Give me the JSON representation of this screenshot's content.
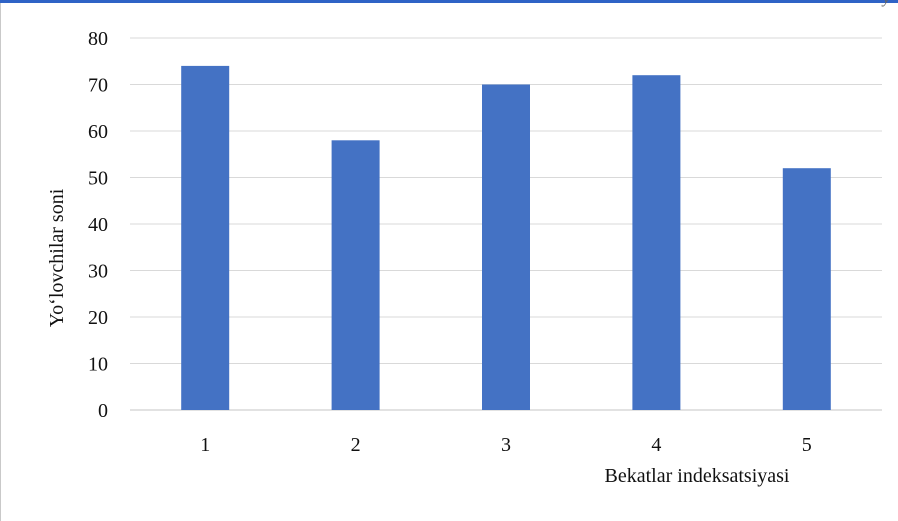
{
  "chart_data": {
    "type": "bar",
    "categories": [
      "1",
      "2",
      "3",
      "4",
      "5"
    ],
    "values": [
      74,
      58,
      70,
      72,
      52
    ],
    "xlabel": "Bekatlar indeksatsiyasi",
    "ylabel": "Yo‘lovchilar soni",
    "ylim": [
      0,
      80
    ],
    "yticks": [
      "0",
      "10",
      "20",
      "30",
      "40",
      "50",
      "60",
      "70",
      "80"
    ],
    "grid": true,
    "bar_color": "#4472c4",
    "grid_color": "#d9d9d9"
  }
}
